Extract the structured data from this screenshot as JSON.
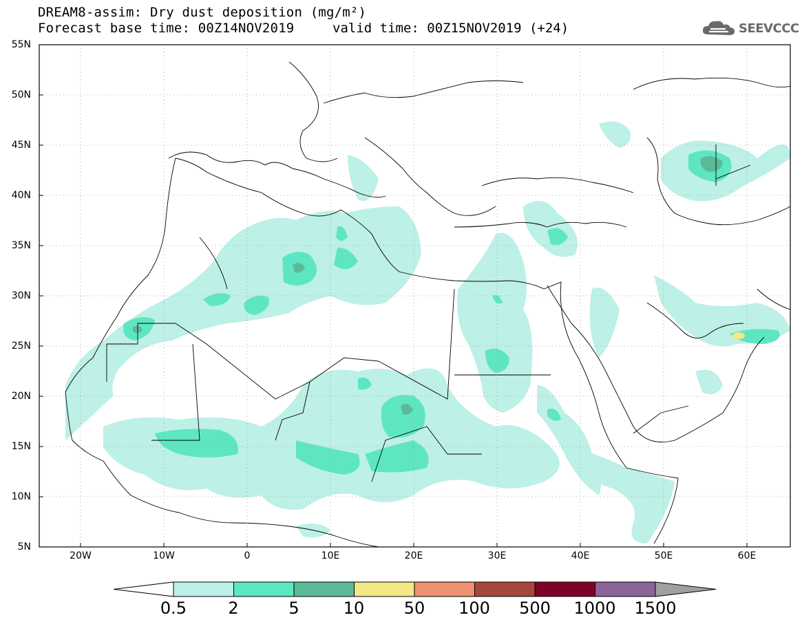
{
  "title": {
    "line1": "DREAM8-assim: Dry dust deposition (mg/m²)",
    "line2": "Forecast base time: 00Z14NOV2019",
    "valid": "valid time: 00Z15NOV2019 (+24)"
  },
  "logo": {
    "text": "SEEVCCC",
    "icon": "cloud-icon"
  },
  "axes": {
    "lat_labels": [
      "55N",
      "50N",
      "45N",
      "40N",
      "35N",
      "30N",
      "25N",
      "20N",
      "15N",
      "10N",
      "5N"
    ],
    "lon_labels": [
      "20W",
      "10W",
      "0",
      "10E",
      "20E",
      "30E",
      "40E",
      "50E",
      "60E"
    ]
  },
  "map_extent": {
    "lon": [
      -25,
      65
    ],
    "lat": [
      5,
      55
    ]
  },
  "colorbar": {
    "labels": [
      "0.5",
      "2",
      "5",
      "10",
      "50",
      "100",
      "500",
      "1000",
      "1500"
    ],
    "colors": [
      "#ffffff",
      "#bdf0e6",
      "#5ee6c3",
      "#5cb998",
      "#f2e985",
      "#ee916e",
      "#a7473b",
      "#7c0228",
      "#8b6498",
      "#a0a0a0"
    ]
  }
}
